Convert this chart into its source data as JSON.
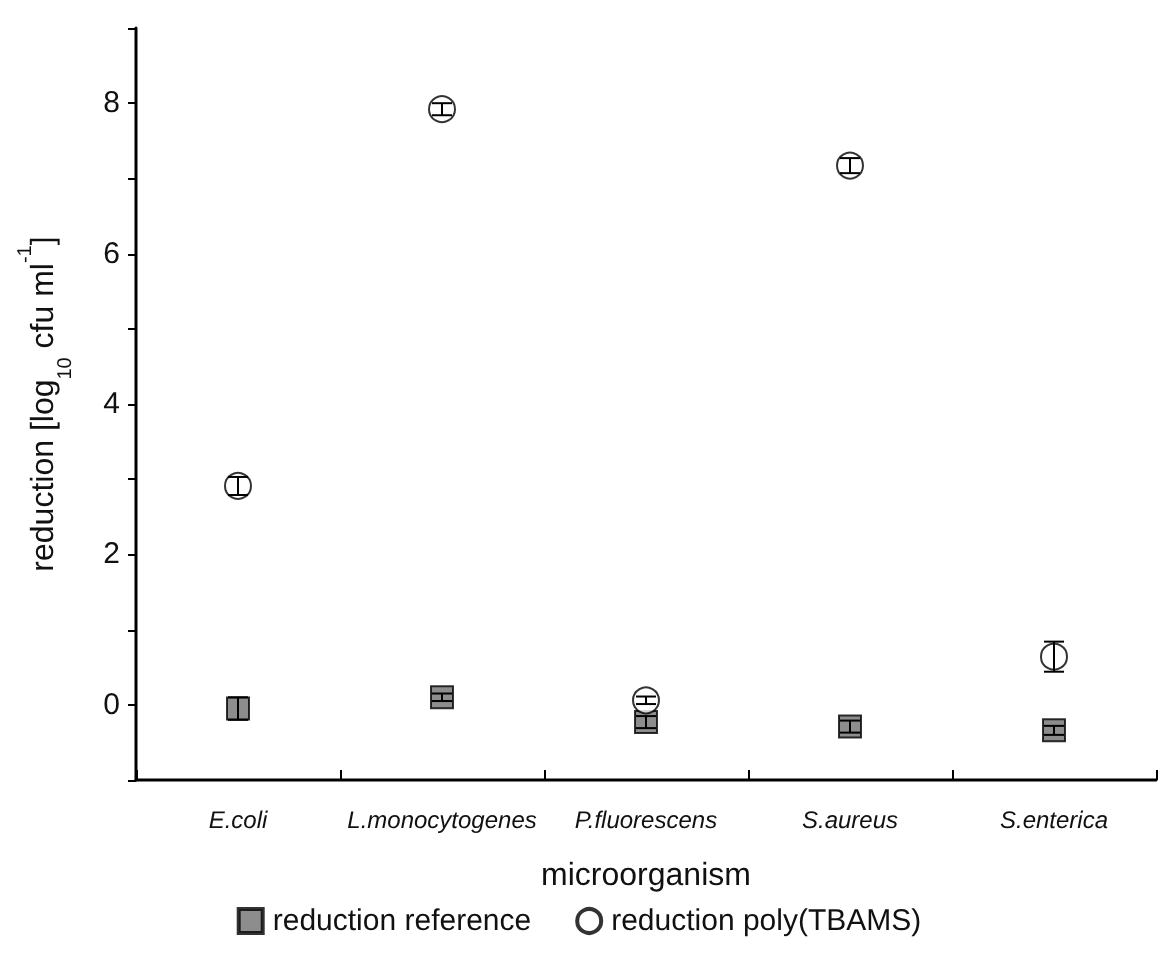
{
  "chart_data": {
    "type": "scatter",
    "xlabel": "microorganism",
    "ylabel": "reduction [log$_{10}$ cfu ml$^{-1}$]",
    "categories": [
      "E.coli",
      "L.monocytogenes",
      "P.fluorescens",
      "S.aureus",
      "S.enterica"
    ],
    "series": [
      {
        "name": "reduction reference",
        "color": "#707070",
        "marker": "square",
        "values": [
          -0.05,
          0.1,
          -0.23,
          -0.29,
          -0.34
        ],
        "errors": [
          0.15,
          0.05,
          0.08,
          0.08,
          0.06
        ]
      },
      {
        "name": "reduction poly(TBAMS)",
        "color": "#ffffff",
        "marker": "circle",
        "values": [
          2.91,
          7.92,
          0.06,
          7.17,
          0.64
        ],
        "errors": [
          0.12,
          0.08,
          0.05,
          0.1,
          0.2
        ]
      }
    ],
    "ylim": [
      -1,
      9
    ],
    "yticks": [
      {
        "value": -1,
        "label": null
      },
      0,
      {
        "value": 1,
        "label": null
      },
      2,
      {
        "value": 3,
        "label": null
      },
      4,
      {
        "value": 5,
        "label": null
      },
      6,
      {
        "value": 7,
        "label": null
      },
      8,
      {
        "value": 9,
        "label": null
      }
    ],
    "grid": false,
    "legend": "bottom"
  }
}
